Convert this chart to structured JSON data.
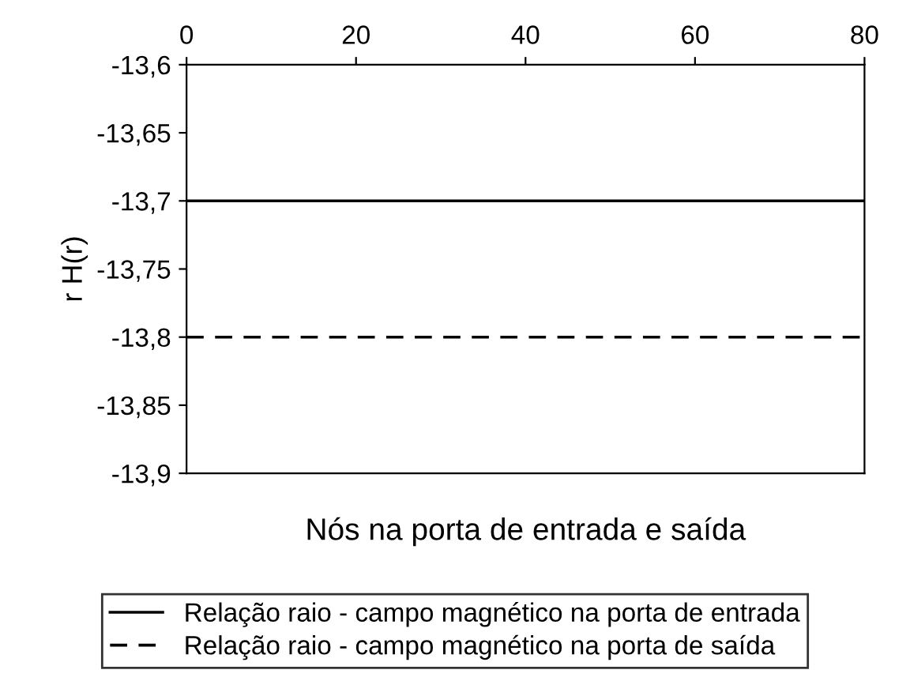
{
  "chart_data": {
    "type": "line",
    "xlabel": "Nós na porta de entrada e saída",
    "ylabel": "r H(r)",
    "x": [
      0,
      80
    ],
    "series": [
      {
        "name": "Relação raio - campo magnético na porta de entrada",
        "color": "#000000",
        "values": [
          -13.7,
          -13.7
        ],
        "line_style": "solid"
      },
      {
        "name": "Relação raio - campo magnético na porta de saída",
        "color": "#000000",
        "values": [
          -13.8,
          -13.8
        ],
        "line_style": "dashed"
      }
    ],
    "xlim": [
      0,
      80
    ],
    "xticks": [
      0,
      20,
      40,
      60,
      80
    ],
    "ylim": [
      -13.9,
      -13.6
    ],
    "yticks": [
      {
        "value": -13.6,
        "label": "-13,6"
      },
      {
        "value": -13.65,
        "label": "-13,65"
      },
      {
        "value": -13.7,
        "label": "-13,7"
      },
      {
        "value": -13.75,
        "label": "-13,75"
      },
      {
        "value": -13.8,
        "label": "-13,8"
      },
      {
        "value": -13.85,
        "label": "-13,85"
      },
      {
        "value": -13.9,
        "label": "-13,9"
      }
    ],
    "grid": false,
    "legend": "bottom",
    "marker": "none"
  }
}
